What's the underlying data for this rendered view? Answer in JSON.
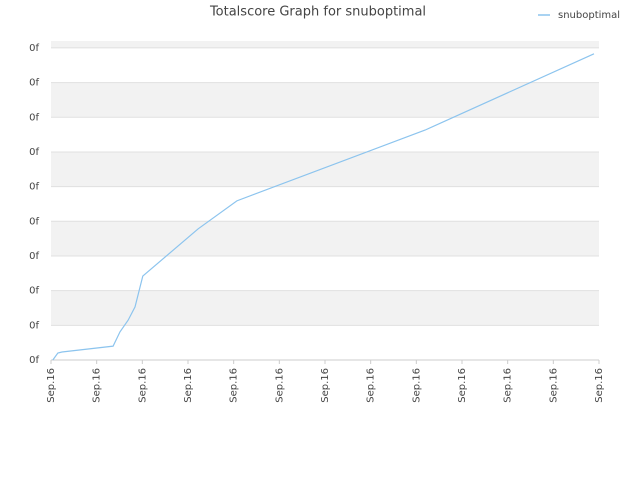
{
  "chart_data": {
    "type": "line",
    "title": "Totalscore Graph for snuboptimal",
    "x": [
      0.04,
      0.15,
      0.24,
      1.36,
      1.51,
      1.69,
      1.84,
      2.01,
      3.22,
      4.07,
      8.19,
      11.89
    ],
    "series": [
      {
        "name": "snuboptimal",
        "color": "#8cc4ee",
        "values": [
          0,
          0.2,
          0.23,
          0.4,
          0.81,
          1.15,
          1.53,
          2.42,
          3.78,
          4.59,
          6.63,
          8.83
        ]
      }
    ],
    "xlim": [
      0,
      12
    ],
    "xticks": [
      {
        "value": 0,
        "label": "Sep.16"
      },
      {
        "value": 1,
        "label": "Sep.16"
      },
      {
        "value": 2,
        "label": "Sep.16"
      },
      {
        "value": 3,
        "label": "Sep.16"
      },
      {
        "value": 4,
        "label": "Sep.16"
      },
      {
        "value": 5,
        "label": "Sep.16"
      },
      {
        "value": 6,
        "label": "Sep.16"
      },
      {
        "value": 7,
        "label": "Sep.16"
      },
      {
        "value": 8,
        "label": "Sep.16"
      },
      {
        "value": 9,
        "label": "Sep.16"
      },
      {
        "value": 10,
        "label": "Sep.16"
      },
      {
        "value": 11,
        "label": "Sep.16"
      },
      {
        "value": 12,
        "label": "Sep.16"
      }
    ],
    "ylim": [
      0,
      9.2
    ],
    "yticks": [
      {
        "value": 0,
        "label": "0f"
      },
      {
        "value": 1,
        "label": "0f"
      },
      {
        "value": 2,
        "label": "0f"
      },
      {
        "value": 3,
        "label": "0f"
      },
      {
        "value": 4,
        "label": "0f"
      },
      {
        "value": 5,
        "label": "0f"
      },
      {
        "value": 6,
        "label": "0f"
      },
      {
        "value": 7,
        "label": "0f"
      },
      {
        "value": 8,
        "label": "0f"
      },
      {
        "value": 9,
        "label": "0f"
      }
    ],
    "grid": true,
    "legend": "top-right"
  }
}
